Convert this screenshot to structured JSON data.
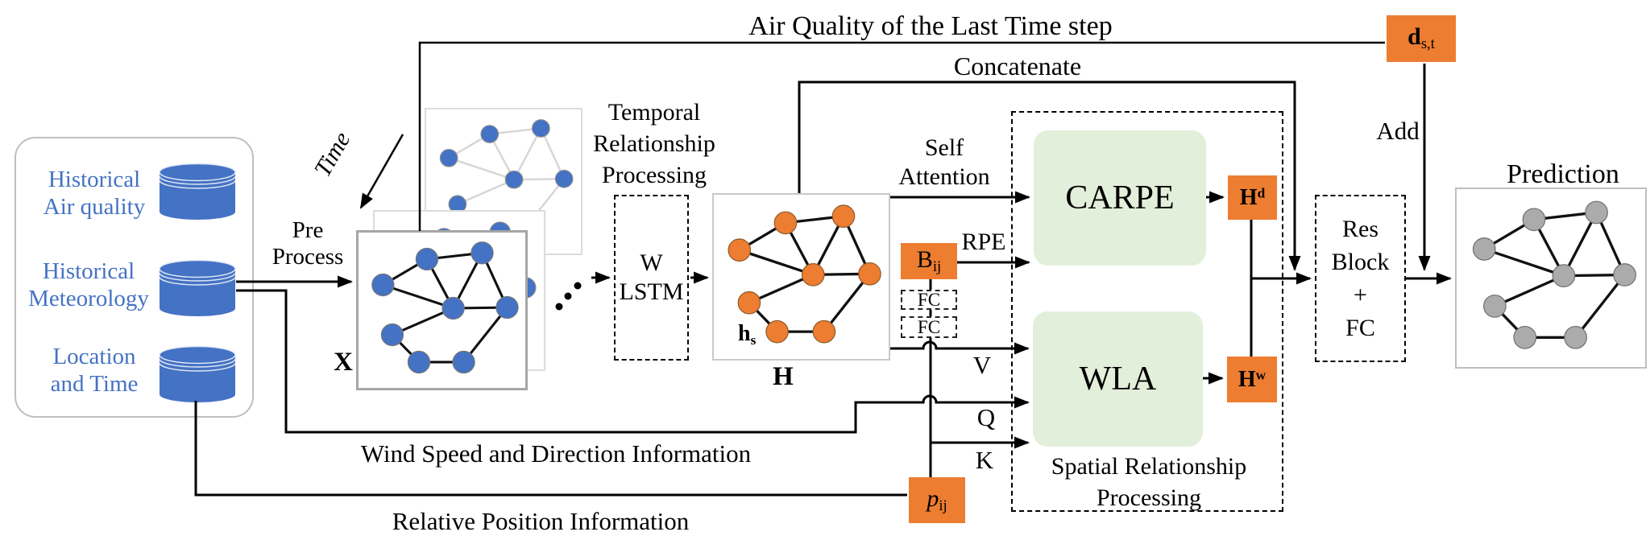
{
  "colors": {
    "blue": "#4472C4",
    "orange": "#ED7D31",
    "green": "#E2EFDA",
    "gray": "#ABABAB"
  },
  "top": {
    "air_quality": "Air Quality of the Last Time step",
    "concatenate": "Concatenate",
    "add": "Add",
    "dst_base": "d",
    "dst_sub": "s,t"
  },
  "inputs": {
    "row1_line1": "Historical",
    "row1_line2": "Air quality",
    "row2_line1": "Historical",
    "row2_line2": "Meteorology",
    "row3_line1": "Location",
    "row3_line2": "and Time"
  },
  "flow": {
    "pre_line1": "Pre",
    "pre_line2": "Process",
    "time": "Time",
    "x": "X"
  },
  "temporal": {
    "line1": "Temporal",
    "line2": "Relationship",
    "line3": "Processing",
    "box_line1": "W",
    "box_line2": "LSTM"
  },
  "hidden": {
    "hs_base": "h",
    "hs_sub": "s",
    "h": "H"
  },
  "attn": {
    "self_line1": "Self",
    "self_line2": "Attention",
    "rpe": "RPE",
    "bij_base": "B",
    "bij_sub": "ij",
    "fc_top": "FC",
    "fc_bottom": "FC",
    "v": "V",
    "q": "Q",
    "k": "K",
    "pij_base": "p",
    "pij_sub": "ij"
  },
  "spatial": {
    "carpe": "CARPE",
    "wla": "WLA",
    "hd_base": "H",
    "hd_sup": "d",
    "hw_base": "H",
    "hw_sup": "w",
    "caption_line1": "Spatial Relationship",
    "caption_line2": "Processing"
  },
  "out": {
    "res_line1": "Res",
    "res_line2": "Block",
    "res_line3": "+",
    "res_line4": "FC",
    "prediction": "Prediction"
  },
  "bottom": {
    "wind": "Wind Speed and Direction Information",
    "relative": "Relative Position Information"
  }
}
